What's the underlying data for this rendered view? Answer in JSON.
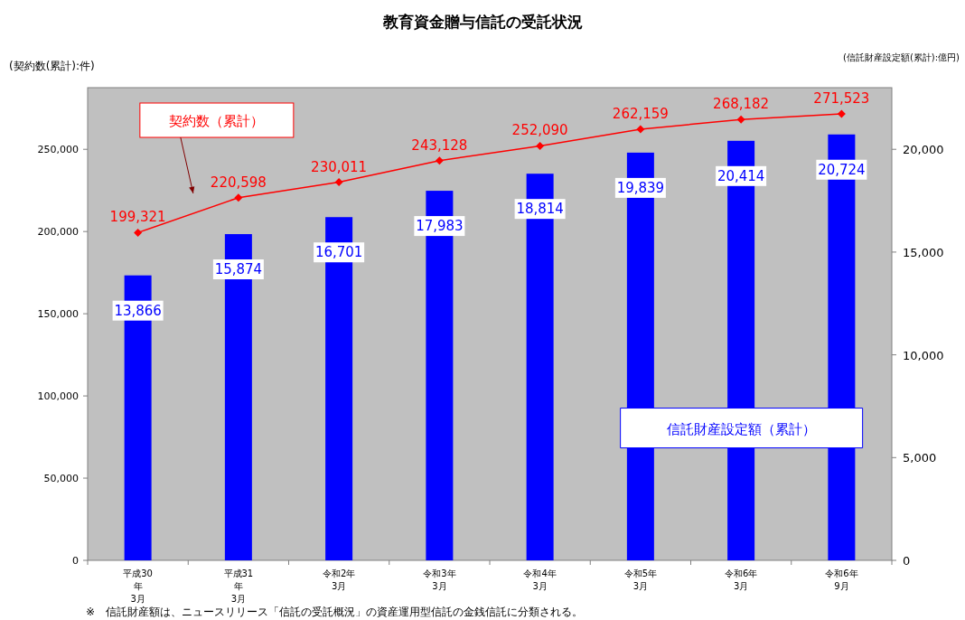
{
  "chart_data": {
    "type": "bar",
    "title": "教育資金贈与信託の受託状況",
    "ylabel": "(契約数(累計):件)",
    "y2label": "(信託財産設定額(累計):億円)",
    "categories": [
      "平成30\n年\n3月",
      "平成31\n年\n3月",
      "令和2年\n3月",
      "令和3年\n3月",
      "令和4年\n3月",
      "令和5年\n3月",
      "令和6年\n3月",
      "令和6年\n9月"
    ],
    "series": [
      {
        "name": "信託財産設定額（累計）",
        "axis": "y2",
        "color": "#0000ff",
        "values": [
          13866,
          15874,
          16701,
          17983,
          18814,
          19839,
          20414,
          20724
        ],
        "value_labels": [
          "13,866",
          "15,874",
          "16,701",
          "17,983",
          "18,814",
          "19,839",
          "20,414",
          "20,724"
        ]
      },
      {
        "name": "契約数（累計）",
        "type": "line",
        "axis": "y",
        "color": "#ff0000",
        "values": [
          199321,
          220598,
          230011,
          243128,
          252090,
          262159,
          268182,
          271523
        ],
        "value_labels": [
          "199,321",
          "220,598",
          "230,011",
          "243,128",
          "252,090",
          "262,159",
          "268,182",
          "271,523"
        ]
      }
    ],
    "ylim": [
      0,
      287500
    ],
    "yticks": [
      {
        "value": 0,
        "label": "0"
      },
      {
        "value": 50000,
        "label": "50,000"
      },
      {
        "value": 100000,
        "label": "100,000"
      },
      {
        "value": 150000,
        "label": "150,000"
      },
      {
        "value": 200000,
        "label": "200,000"
      },
      {
        "value": 250000,
        "label": "250,000"
      }
    ],
    "y2lim": [
      0,
      23000
    ],
    "y2ticks": [
      {
        "value": 0,
        "label": "0"
      },
      {
        "value": 5000,
        "label": "5,000"
      },
      {
        "value": 10000,
        "label": "10,000"
      },
      {
        "value": 15000,
        "label": "15,000"
      },
      {
        "value": 20000,
        "label": "20,000"
      }
    ],
    "marker": "diamond",
    "grid": false,
    "legend": false,
    "annotations": [
      "※　信託財産額は、ニュースリリース「信託の受託概況」の資産運用型信託の金銭信託に分類される。"
    ]
  }
}
